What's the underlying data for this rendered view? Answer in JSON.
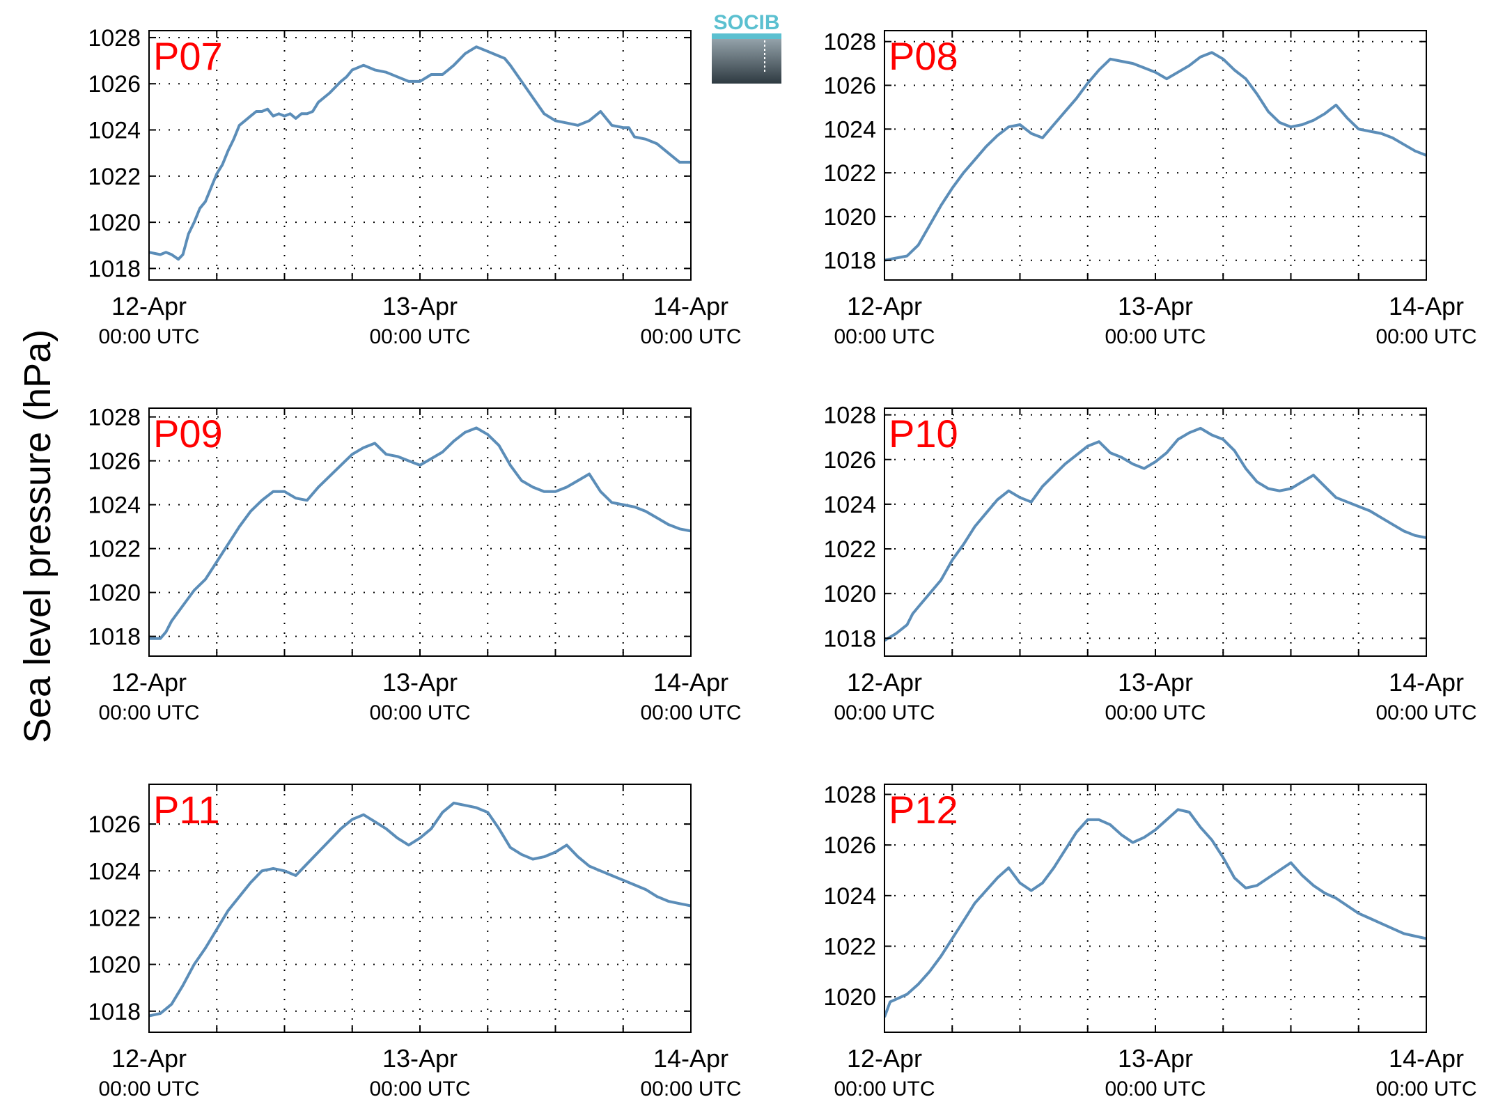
{
  "ylabel": "Sea level pressure (hPa)",
  "logo": {
    "text": "SOCIB",
    "colors": {
      "text": "#5bc0d0",
      "top": "#8a9aa3",
      "bottom": "#2e3a41"
    }
  },
  "colors": {
    "line": "#5b8db8",
    "label": "#ff0000",
    "grid": "#000000"
  },
  "x_tick_labels": [
    {
      "date": "12-Apr",
      "time": "00:00 UTC"
    },
    {
      "date": "13-Apr",
      "time": "00:00 UTC"
    },
    {
      "date": "14-Apr",
      "time": "00:00 UTC"
    }
  ],
  "chart_data": [
    {
      "type": "line",
      "title": "P07",
      "x_unit": "hours since 12-Apr 00:00 UTC",
      "xlim": [
        0,
        48
      ],
      "ylim": [
        1017.5,
        1028.3
      ],
      "yticks": [
        1018,
        1020,
        1022,
        1024,
        1026,
        1028
      ],
      "x": [
        0,
        1,
        1.5,
        2,
        2.3,
        2.6,
        3,
        3.5,
        4,
        4.5,
        5,
        5.5,
        6,
        6.5,
        7,
        7.5,
        8,
        8.5,
        9,
        9.5,
        10,
        10.5,
        11,
        11.5,
        12,
        12.5,
        13,
        13.5,
        14,
        14.5,
        15,
        16,
        17,
        17.5,
        18,
        19,
        20,
        21,
        22,
        23,
        24,
        25,
        26,
        26.5,
        27,
        28,
        29,
        30,
        31,
        31.5,
        32,
        33,
        34,
        35,
        36,
        37,
        38,
        39,
        40,
        41,
        42,
        42.5,
        43,
        44,
        45,
        46,
        47,
        48
      ],
      "y": [
        1018.7,
        1018.6,
        1018.7,
        1018.6,
        1018.5,
        1018.4,
        1018.6,
        1019.5,
        1020.0,
        1020.6,
        1020.9,
        1021.5,
        1022.1,
        1022.5,
        1023.1,
        1023.6,
        1024.2,
        1024.4,
        1024.6,
        1024.8,
        1024.8,
        1024.9,
        1024.6,
        1024.7,
        1024.6,
        1024.7,
        1024.5,
        1024.7,
        1024.7,
        1024.8,
        1025.2,
        1025.6,
        1026.1,
        1026.3,
        1026.6,
        1026.8,
        1026.6,
        1026.5,
        1026.3,
        1026.1,
        1026.1,
        1026.4,
        1026.4,
        1026.6,
        1026.8,
        1027.3,
        1027.6,
        1027.4,
        1027.2,
        1027.1,
        1026.8,
        1026.1,
        1025.4,
        1024.7,
        1024.4,
        1024.3,
        1024.2,
        1024.4,
        1024.8,
        1024.2,
        1024.1,
        1024.1,
        1023.7,
        1023.6,
        1023.4,
        1023.0,
        1022.6,
        1022.6
      ]
    },
    {
      "type": "line",
      "title": "P08",
      "x_unit": "hours since 12-Apr 00:00 UTC",
      "xlim": [
        0,
        48
      ],
      "ylim": [
        1017.1,
        1028.5
      ],
      "yticks": [
        1018,
        1020,
        1022,
        1024,
        1026,
        1028
      ],
      "x": [
        0,
        1,
        2,
        3,
        4,
        5,
        6,
        7,
        8,
        9,
        10,
        11,
        12,
        13,
        14,
        15,
        16,
        17,
        18,
        19,
        20,
        21,
        22,
        23,
        24,
        25,
        26,
        27,
        28,
        29,
        30,
        31,
        32,
        33,
        34,
        35,
        36,
        37,
        38,
        39,
        40,
        41,
        42,
        43,
        44,
        45,
        46,
        47,
        48
      ],
      "y": [
        1018.0,
        1018.1,
        1018.2,
        1018.7,
        1019.6,
        1020.5,
        1021.3,
        1022.0,
        1022.6,
        1023.2,
        1023.7,
        1024.1,
        1024.2,
        1023.8,
        1023.6,
        1024.2,
        1024.8,
        1025.4,
        1026.1,
        1026.7,
        1027.2,
        1027.1,
        1027.0,
        1026.8,
        1026.6,
        1026.3,
        1026.6,
        1026.9,
        1027.3,
        1027.5,
        1027.2,
        1026.7,
        1026.3,
        1025.6,
        1024.8,
        1024.3,
        1024.1,
        1024.2,
        1024.4,
        1024.7,
        1025.1,
        1024.5,
        1024.0,
        1023.9,
        1023.8,
        1023.6,
        1023.3,
        1023.0,
        1022.8
      ]
    },
    {
      "type": "line",
      "title": "P09",
      "x_unit": "hours since 12-Apr 00:00 UTC",
      "xlim": [
        0,
        48
      ],
      "ylim": [
        1017.1,
        1028.4
      ],
      "yticks": [
        1018,
        1020,
        1022,
        1024,
        1026,
        1028
      ],
      "x": [
        0,
        1,
        1.5,
        2,
        3,
        4,
        5,
        6,
        7,
        8,
        9,
        10,
        11,
        12,
        13,
        14,
        15,
        16,
        17,
        18,
        19,
        20,
        21,
        22,
        23,
        24,
        25,
        26,
        27,
        28,
        29,
        30,
        31,
        32,
        33,
        34,
        35,
        36,
        37,
        38,
        39,
        40,
        41,
        42,
        43,
        44,
        45,
        46,
        47,
        48
      ],
      "y": [
        1017.9,
        1017.9,
        1018.2,
        1018.7,
        1019.4,
        1020.1,
        1020.6,
        1021.4,
        1022.2,
        1023.0,
        1023.7,
        1024.2,
        1024.6,
        1024.6,
        1024.3,
        1024.2,
        1024.8,
        1025.3,
        1025.8,
        1026.3,
        1026.6,
        1026.8,
        1026.3,
        1026.2,
        1026.0,
        1025.8,
        1026.1,
        1026.4,
        1026.9,
        1027.3,
        1027.5,
        1027.2,
        1026.7,
        1025.8,
        1025.1,
        1024.8,
        1024.6,
        1024.6,
        1024.8,
        1025.1,
        1025.4,
        1024.6,
        1024.1,
        1024.0,
        1023.9,
        1023.7,
        1023.4,
        1023.1,
        1022.9,
        1022.8
      ]
    },
    {
      "type": "line",
      "title": "P10",
      "x_unit": "hours since 12-Apr 00:00 UTC",
      "xlim": [
        0,
        48
      ],
      "ylim": [
        1017.2,
        1028.3
      ],
      "yticks": [
        1018,
        1020,
        1022,
        1024,
        1026,
        1028
      ],
      "x": [
        0,
        1,
        2,
        2.5,
        3,
        4,
        5,
        6,
        7,
        8,
        9,
        10,
        11,
        12,
        13,
        14,
        15,
        16,
        17,
        18,
        19,
        20,
        21,
        22,
        23,
        24,
        25,
        26,
        27,
        28,
        29,
        30,
        31,
        32,
        33,
        34,
        35,
        36,
        37,
        38,
        39,
        40,
        41,
        42,
        43,
        44,
        45,
        46,
        47,
        48
      ],
      "y": [
        1017.9,
        1018.2,
        1018.6,
        1019.1,
        1019.4,
        1020.0,
        1020.6,
        1021.5,
        1022.2,
        1023.0,
        1023.6,
        1024.2,
        1024.6,
        1024.3,
        1024.1,
        1024.8,
        1025.3,
        1025.8,
        1026.2,
        1026.6,
        1026.8,
        1026.3,
        1026.1,
        1025.8,
        1025.6,
        1025.9,
        1026.3,
        1026.9,
        1027.2,
        1027.4,
        1027.1,
        1026.9,
        1026.4,
        1025.6,
        1025.0,
        1024.7,
        1024.6,
        1024.7,
        1025.0,
        1025.3,
        1024.8,
        1024.3,
        1024.1,
        1023.9,
        1023.7,
        1023.4,
        1023.1,
        1022.8,
        1022.6,
        1022.5
      ]
    },
    {
      "type": "line",
      "title": "P11",
      "x_unit": "hours since 12-Apr 00:00 UTC",
      "xlim": [
        0,
        48
      ],
      "ylim": [
        1017.1,
        1027.7
      ],
      "yticks": [
        1018,
        1020,
        1022,
        1024,
        1026
      ],
      "x": [
        0,
        1,
        1.5,
        2,
        3,
        4,
        5,
        6,
        7,
        8,
        9,
        10,
        11,
        12,
        13,
        14,
        15,
        16,
        17,
        18,
        19,
        20,
        21,
        22,
        23,
        24,
        25,
        26,
        27,
        28,
        29,
        30,
        31,
        32,
        33,
        34,
        35,
        36,
        37,
        38,
        39,
        40,
        41,
        42,
        43,
        44,
        45,
        46,
        47,
        48
      ],
      "y": [
        1017.8,
        1017.9,
        1018.1,
        1018.3,
        1019.1,
        1020.0,
        1020.7,
        1021.5,
        1022.3,
        1022.9,
        1023.5,
        1024.0,
        1024.1,
        1024.0,
        1023.8,
        1024.3,
        1024.8,
        1025.3,
        1025.8,
        1026.2,
        1026.4,
        1026.1,
        1025.8,
        1025.4,
        1025.1,
        1025.4,
        1025.8,
        1026.5,
        1026.9,
        1026.8,
        1026.7,
        1026.5,
        1025.8,
        1025.0,
        1024.7,
        1024.5,
        1024.6,
        1024.8,
        1025.1,
        1024.6,
        1024.2,
        1024.0,
        1023.8,
        1023.6,
        1023.4,
        1023.2,
        1022.9,
        1022.7,
        1022.6,
        1022.5
      ]
    },
    {
      "type": "line",
      "title": "P12",
      "x_unit": "hours since 12-Apr 00:00 UTC",
      "xlim": [
        0,
        48
      ],
      "ylim": [
        1018.6,
        1028.4
      ],
      "yticks": [
        1020,
        1022,
        1024,
        1026,
        1028
      ],
      "x": [
        0,
        0.5,
        1,
        2,
        3,
        4,
        5,
        6,
        7,
        8,
        9,
        10,
        11,
        12,
        13,
        14,
        15,
        16,
        17,
        18,
        19,
        20,
        21,
        22,
        23,
        24,
        25,
        26,
        27,
        28,
        29,
        30,
        31,
        32,
        33,
        34,
        35,
        36,
        37,
        38,
        39,
        40,
        41,
        42,
        43,
        44,
        45,
        46,
        47,
        48
      ],
      "y": [
        1019.2,
        1019.8,
        1019.9,
        1020.1,
        1020.5,
        1021.0,
        1021.6,
        1022.3,
        1023.0,
        1023.7,
        1024.2,
        1024.7,
        1025.1,
        1024.5,
        1024.2,
        1024.5,
        1025.1,
        1025.8,
        1026.5,
        1027.0,
        1027.0,
        1026.8,
        1026.4,
        1026.1,
        1026.3,
        1026.6,
        1027.0,
        1027.4,
        1027.3,
        1026.7,
        1026.2,
        1025.5,
        1024.7,
        1024.3,
        1024.4,
        1024.7,
        1025.0,
        1025.3,
        1024.8,
        1024.4,
        1024.1,
        1023.9,
        1023.6,
        1023.3,
        1023.1,
        1022.9,
        1022.7,
        1022.5,
        1022.4,
        1022.3
      ]
    }
  ]
}
